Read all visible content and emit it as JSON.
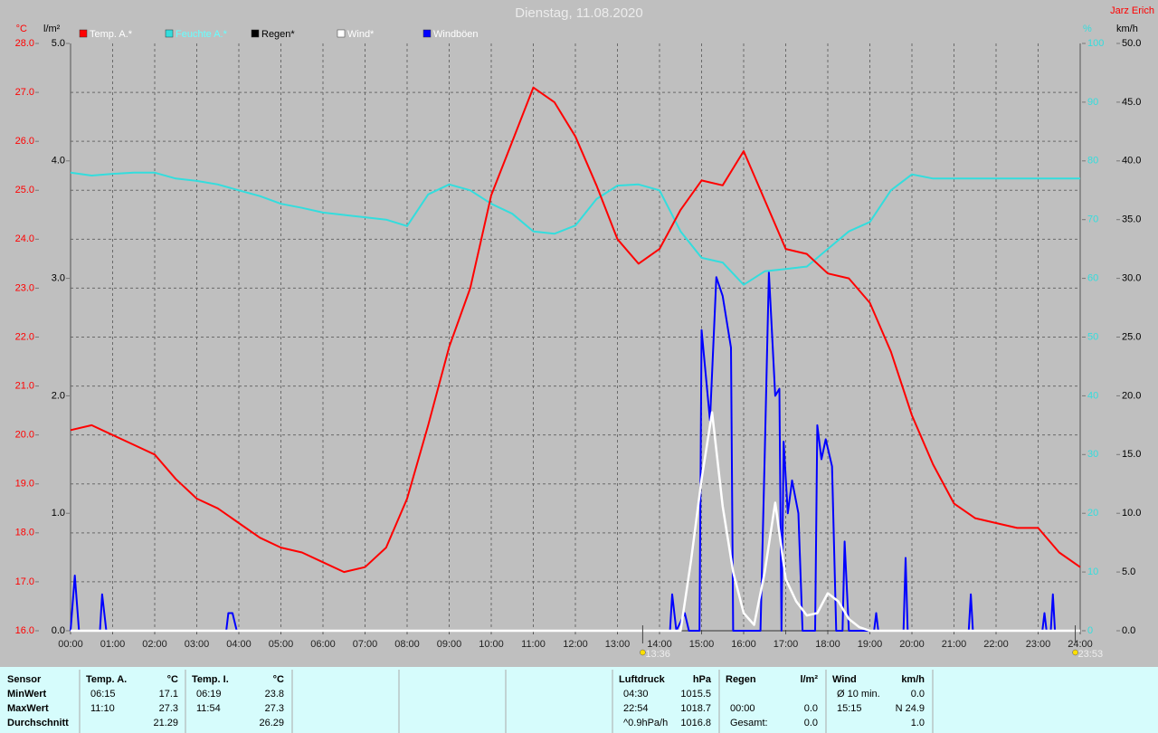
{
  "chart_data": {
    "type": "line",
    "title": "Dienstag, 11.08.2020",
    "author": "Jarz Erich",
    "y_label": "°C",
    "y3_label": "l/m²",
    "y4_label": "%",
    "y2_label": "km/h",
    "xlim": [
      0,
      24
    ],
    "xticks": [
      {
        "value": 0,
        "label": "00:00"
      },
      {
        "value": 1,
        "label": "01:00"
      },
      {
        "value": 2,
        "label": "02:00"
      },
      {
        "value": 3,
        "label": "03:00"
      },
      {
        "value": 4,
        "label": "04:00"
      },
      {
        "value": 5,
        "label": "05:00"
      },
      {
        "value": 6,
        "label": "06:00"
      },
      {
        "value": 7,
        "label": "07:00"
      },
      {
        "value": 8,
        "label": "08:00"
      },
      {
        "value": 9,
        "label": "09:00"
      },
      {
        "value": 10,
        "label": "10:00"
      },
      {
        "value": 11,
        "label": "11:00"
      },
      {
        "value": 12,
        "label": "12:00"
      },
      {
        "value": 13,
        "label": "13:00"
      },
      {
        "value": 14,
        "label": "14:00"
      },
      {
        "value": 15,
        "label": "15:00"
      },
      {
        "value": 16,
        "label": "16:00"
      },
      {
        "value": 17,
        "label": "17:00"
      },
      {
        "value": 18,
        "label": "18:00"
      },
      {
        "value": 19,
        "label": "19:00"
      },
      {
        "value": 20,
        "label": "20:00"
      },
      {
        "value": 21,
        "label": "21:00"
      },
      {
        "value": 22,
        "label": "22:00"
      },
      {
        "value": 23,
        "label": "23:00"
      },
      {
        "value": 24,
        "label": "24:00"
      }
    ],
    "ylim": [
      16,
      28
    ],
    "yticks": [
      {
        "value": 16,
        "label": "16.0"
      },
      {
        "value": 17,
        "label": "17.0"
      },
      {
        "value": 18,
        "label": "18.0"
      },
      {
        "value": 19,
        "label": "19.0"
      },
      {
        "value": 20,
        "label": "20.0"
      },
      {
        "value": 21,
        "label": "21.0"
      },
      {
        "value": 22,
        "label": "22.0"
      },
      {
        "value": 23,
        "label": "23.0"
      },
      {
        "value": 24,
        "label": "24.0"
      },
      {
        "value": 25,
        "label": "25.0"
      },
      {
        "value": 26,
        "label": "26.0"
      },
      {
        "value": 27,
        "label": "27.0"
      },
      {
        "value": 28,
        "label": "28.0"
      }
    ],
    "y3lim": [
      0,
      5
    ],
    "y3ticks": [
      {
        "value": 0,
        "label": "0.0"
      },
      {
        "value": 1,
        "label": "1.0"
      },
      {
        "value": 2,
        "label": "2.0"
      },
      {
        "value": 3,
        "label": "3.0"
      },
      {
        "value": 4,
        "label": "4.0"
      },
      {
        "value": 5,
        "label": "5.0"
      }
    ],
    "y4lim": [
      0,
      100
    ],
    "y4ticks": [
      0,
      10,
      20,
      30,
      40,
      50,
      60,
      70,
      80,
      90,
      100
    ],
    "y2lim": [
      0,
      50
    ],
    "y2ticks": [
      {
        "value": 0,
        "label": "0.0"
      },
      {
        "value": 5,
        "label": "5.0"
      },
      {
        "value": 10,
        "label": "10.0"
      },
      {
        "value": 15,
        "label": "15.0"
      },
      {
        "value": 20,
        "label": "20.0"
      },
      {
        "value": 25,
        "label": "25.0"
      },
      {
        "value": 30,
        "label": "30.0"
      },
      {
        "value": 35,
        "label": "35.0"
      },
      {
        "value": 40,
        "label": "40.0"
      },
      {
        "value": 45,
        "label": "45.0"
      },
      {
        "value": 50,
        "label": "50.0"
      }
    ],
    "grid": true,
    "series": [
      {
        "name": "Temp. A.*",
        "color": "#ff0000",
        "axis": "y",
        "x": [
          0,
          0.5,
          1,
          1.5,
          2,
          2.5,
          3,
          3.5,
          4,
          4.5,
          5,
          5.5,
          6,
          6.5,
          7,
          7.5,
          8,
          8.5,
          9,
          9.5,
          10,
          10.5,
          11,
          11.5,
          12,
          12.5,
          13,
          13.5,
          14,
          14.5,
          15,
          15.5,
          16,
          16.5,
          17,
          17.5,
          18,
          18.5,
          19,
          19.5,
          20,
          20.5,
          21,
          21.5,
          22,
          22.5,
          23,
          23.5,
          24
        ],
        "values": [
          20.1,
          20.2,
          20.0,
          19.8,
          19.6,
          19.1,
          18.7,
          18.5,
          18.2,
          17.9,
          17.7,
          17.6,
          17.4,
          17.2,
          17.3,
          17.7,
          18.7,
          20.2,
          21.8,
          23.0,
          24.9,
          26.0,
          27.1,
          26.8,
          26.1,
          25.1,
          24.0,
          23.5,
          23.8,
          24.6,
          25.2,
          25.1,
          25.8,
          24.8,
          23.8,
          23.7,
          23.3,
          23.2,
          22.7,
          21.7,
          20.4,
          19.4,
          18.6,
          18.3,
          18.2,
          18.1,
          18.1,
          17.6,
          17.3
        ]
      },
      {
        "name": "Feuchte A.*",
        "color": "#33dddd",
        "axis": "y4",
        "x": [
          0,
          0.5,
          1,
          1.5,
          2,
          2.5,
          3,
          3.5,
          4,
          4.5,
          5,
          5.5,
          6,
          6.5,
          7,
          7.5,
          8,
          8.5,
          9,
          9.5,
          10,
          10.5,
          11,
          11.5,
          12,
          12.5,
          13,
          13.5,
          14,
          14.5,
          15,
          15.5,
          16,
          16.5,
          17,
          17.5,
          18,
          18.5,
          19,
          19.5,
          20,
          20.5,
          21,
          21.5,
          22,
          22.5,
          23,
          23.5,
          24
        ],
        "values": [
          78,
          77.5,
          77.8,
          78,
          78,
          77,
          76.6,
          76,
          75,
          74,
          72.7,
          72,
          71.2,
          70.8,
          70.4,
          70,
          68.9,
          74.3,
          76,
          75,
          72.7,
          71,
          68,
          67.6,
          69,
          73.5,
          75.8,
          76,
          75,
          68,
          63.5,
          62.7,
          58.9,
          61.2,
          61.6,
          62,
          65,
          68,
          69.6,
          75,
          77.7,
          77,
          77,
          77,
          77,
          77,
          77,
          77,
          77
        ]
      },
      {
        "name": "Regen*",
        "color": "#000000",
        "axis": "y3"
      },
      {
        "name": "Wind*",
        "color": "#ffffff",
        "axis": "y2",
        "x": [
          0,
          14.5,
          14.75,
          15,
          15.25,
          15.5,
          15.75,
          16,
          16.25,
          16.5,
          16.75,
          17,
          17.25,
          17.5,
          17.75,
          18,
          18.25,
          18.5,
          18.75,
          19,
          24
        ],
        "values": [
          0,
          0,
          6,
          12.9,
          18.6,
          10.6,
          5,
          1.5,
          0.5,
          5,
          10.9,
          4.4,
          2.5,
          1.3,
          1.5,
          3.2,
          2.5,
          1,
          0.3,
          0,
          0
        ]
      },
      {
        "name": "Windböen",
        "color": "#0000ff",
        "axis": "y2",
        "x": [
          0,
          0.1,
          0.2,
          0.7,
          0.75,
          0.85,
          3.7,
          3.75,
          3.85,
          3.95,
          14.25,
          14.3,
          14.4,
          14.6,
          14.7,
          14.95,
          15.0,
          15.2,
          15.35,
          15.5,
          15.7,
          15.75,
          16.4,
          16.5,
          16.6,
          16.75,
          16.85,
          16.9,
          16.95,
          17.05,
          17.15,
          17.3,
          17.4,
          17.7,
          17.75,
          17.85,
          17.95,
          18.1,
          18.2,
          18.35,
          18.4,
          18.5,
          19.1,
          19.15,
          19.2,
          19.8,
          19.85,
          19.9,
          21.35,
          21.4,
          21.45,
          23.1,
          23.15,
          23.2,
          23.3,
          23.35,
          23.4,
          24
        ],
        "values": [
          0,
          4.7,
          0,
          0,
          3.1,
          0,
          0,
          1.5,
          1.5,
          0,
          0,
          3.1,
          0,
          1.5,
          0,
          0,
          25.6,
          17.9,
          30.1,
          28.5,
          24.1,
          0,
          0,
          15,
          30.5,
          20,
          20.6,
          0,
          16.1,
          10,
          12.8,
          10,
          0,
          0,
          17.5,
          14.6,
          16.3,
          14,
          0,
          0,
          7.6,
          0,
          0,
          1.5,
          0,
          0,
          6.2,
          0,
          0,
          3.1,
          0,
          0,
          1.5,
          0,
          0,
          3.1,
          0,
          0
        ]
      }
    ],
    "annotations": [
      {
        "x": 13.6,
        "text": "13:36"
      },
      {
        "x": 23.883,
        "text": "23:53"
      }
    ]
  },
  "table": {
    "row_header": "Sensor",
    "row_labels": [
      "MinWert",
      "MaxWert",
      "Durchschnitt"
    ],
    "groups": [
      {
        "title": "Temp. A.",
        "unit": "°C",
        "rows": [
          [
            "06:15",
            "17.1"
          ],
          [
            "11:10",
            "27.3"
          ],
          [
            null,
            "21.29"
          ]
        ]
      },
      {
        "title": "Temp. I.",
        "unit": "°C",
        "rows": [
          [
            "06:19",
            "23.8"
          ],
          [
            "11:54",
            "27.3"
          ],
          [
            null,
            "26.29"
          ]
        ]
      },
      {
        "title": "Luftdruck",
        "unit": "hPa",
        "rows": [
          [
            "04:30",
            "1015.5"
          ],
          [
            "22:54",
            "1018.7"
          ],
          [
            "^0.9hPa/h",
            "1016.8"
          ]
        ]
      },
      {
        "title": "Regen",
        "unit": "l/m²",
        "rows": [
          [
            null,
            null
          ],
          [
            "00:00",
            "0.0"
          ],
          [
            "Gesamt:",
            "0.0"
          ]
        ]
      },
      {
        "title": "Wind",
        "unit": "km/h",
        "rows": [
          [
            "Ø 10 min.",
            "0.0"
          ],
          [
            "15:15",
            "N 24.9"
          ],
          [
            null,
            "1.0"
          ]
        ]
      }
    ]
  }
}
